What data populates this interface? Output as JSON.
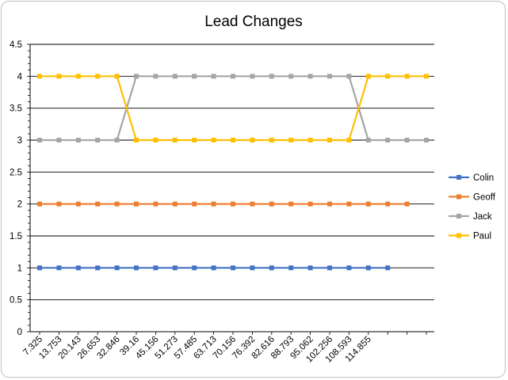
{
  "chart_data": {
    "type": "line",
    "title": "Lead Changes",
    "xlabel": "",
    "ylabel": "",
    "ylim": [
      0,
      4.5
    ],
    "yticks": [
      "0",
      "0.5",
      "1",
      "1.5",
      "2",
      "2.5",
      "3",
      "3.5",
      "4",
      "4.5"
    ],
    "x_tick_labels": [
      "7.325",
      "13.753",
      "20.143",
      "26.653",
      "32.846",
      "39.16",
      "45.156",
      "51.273",
      "57.485",
      "63.713",
      "70.156",
      "76.392",
      "82.616",
      "88.793",
      "95.062",
      "102.256",
      "108.593",
      "114.855"
    ],
    "grid": true,
    "legend_position": "right",
    "series": [
      {
        "name": "Colin",
        "color": "#4472C4",
        "values": [
          1,
          1,
          1,
          1,
          1,
          1,
          1,
          1,
          1,
          1,
          1,
          1,
          1,
          1,
          1,
          1,
          1,
          1,
          1
        ]
      },
      {
        "name": "Geoff",
        "color": "#ED7D31",
        "values": [
          2,
          2,
          2,
          2,
          2,
          2,
          2,
          2,
          2,
          2,
          2,
          2,
          2,
          2,
          2,
          2,
          2,
          2,
          2,
          2
        ]
      },
      {
        "name": "Jack",
        "color": "#A5A5A5",
        "values": [
          3,
          3,
          3,
          3,
          3,
          4,
          4,
          4,
          4,
          4,
          4,
          4,
          4,
          4,
          4,
          4,
          4,
          3,
          3,
          3,
          3
        ]
      },
      {
        "name": "Paul",
        "color": "#FFC000",
        "values": [
          4,
          4,
          4,
          4,
          4,
          3,
          3,
          3,
          3,
          3,
          3,
          3,
          3,
          3,
          3,
          3,
          3,
          4,
          4,
          4,
          4
        ]
      }
    ]
  }
}
